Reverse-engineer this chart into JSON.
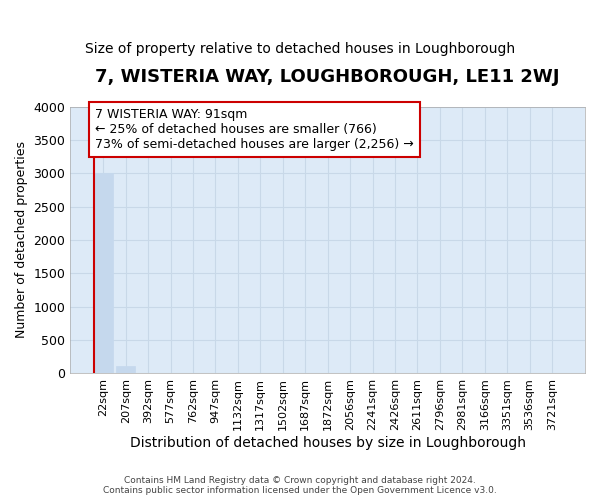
{
  "title": "7, WISTERIA WAY, LOUGHBOROUGH, LE11 2WJ",
  "subtitle": "Size of property relative to detached houses in Loughborough",
  "xlabel": "Distribution of detached houses by size in Loughborough",
  "ylabel": "Number of detached properties",
  "footer_line1": "Contains HM Land Registry data © Crown copyright and database right 2024.",
  "footer_line2": "Contains public sector information licensed under the Open Government Licence v3.0.",
  "bar_labels": [
    "22sqm",
    "207sqm",
    "392sqm",
    "577sqm",
    "762sqm",
    "947sqm",
    "1132sqm",
    "1317sqm",
    "1502sqm",
    "1687sqm",
    "1872sqm",
    "2056sqm",
    "2241sqm",
    "2426sqm",
    "2611sqm",
    "2796sqm",
    "2981sqm",
    "3166sqm",
    "3351sqm",
    "3536sqm",
    "3721sqm"
  ],
  "bar_values": [
    3000,
    115,
    0,
    0,
    0,
    0,
    0,
    0,
    0,
    0,
    0,
    0,
    0,
    0,
    0,
    0,
    0,
    0,
    0,
    0,
    0
  ],
  "bar_color": "#c5d8ed",
  "bar_edgecolor": "#c5d8ed",
  "ylim": [
    0,
    4000
  ],
  "yticks": [
    0,
    500,
    1000,
    1500,
    2000,
    2500,
    3000,
    3500,
    4000
  ],
  "annotation_line1": "7 WISTERIA WAY: 91sqm",
  "annotation_line2": "← 25% of detached houses are smaller (766)",
  "annotation_line3": "73% of semi-detached houses are larger (2,256) →",
  "annotation_box_color": "#ffffff",
  "annotation_border_color": "#cc0000",
  "vline_color": "#cc0000",
  "plot_bg_color": "#ddeaf7",
  "fig_bg_color": "#ffffff",
  "grid_color": "#c8d8e8",
  "title_fontsize": 13,
  "subtitle_fontsize": 10,
  "tick_fontsize": 8,
  "ylabel_fontsize": 9,
  "xlabel_fontsize": 10
}
